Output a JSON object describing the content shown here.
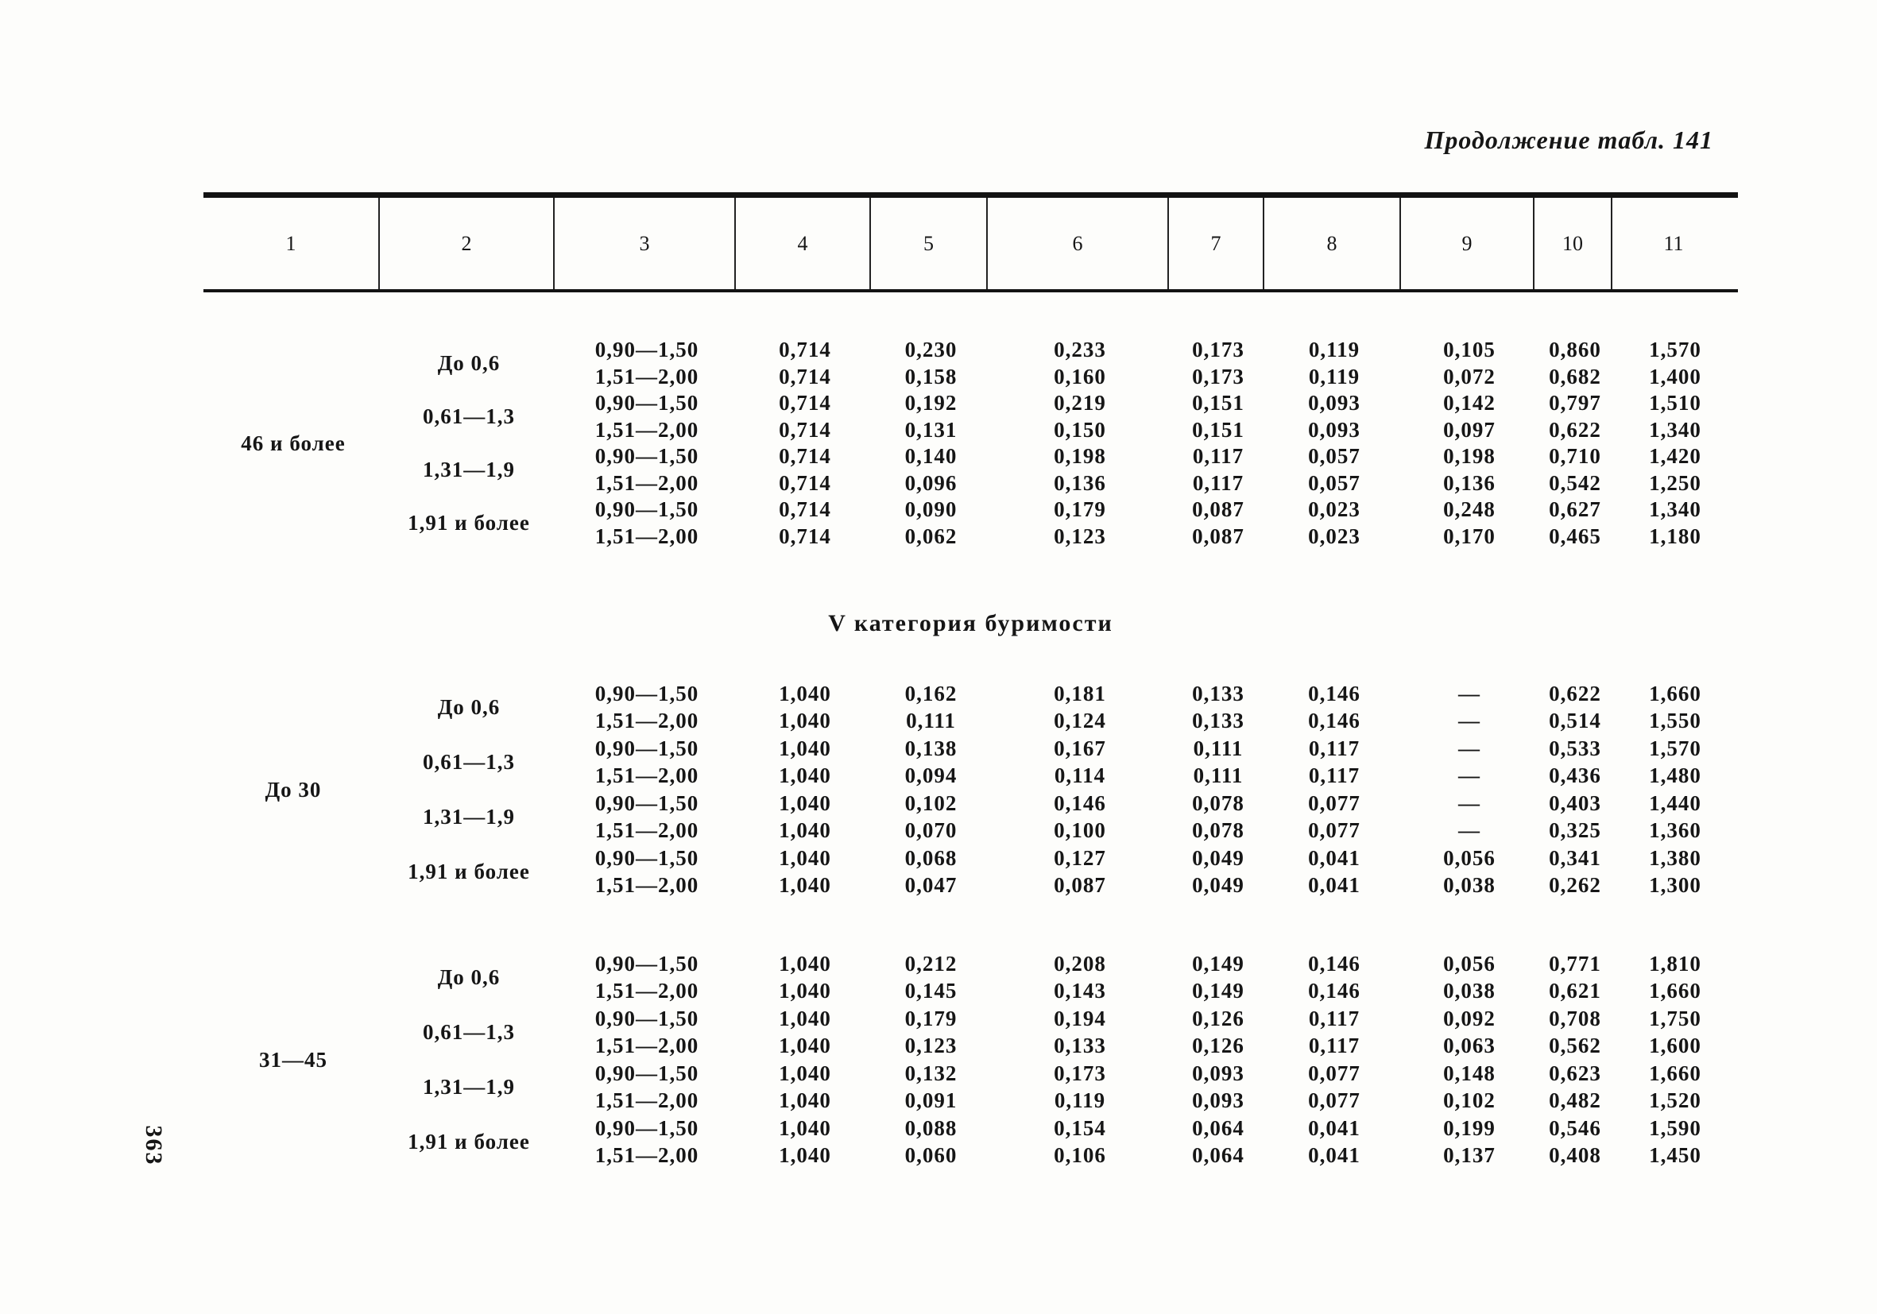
{
  "page": {
    "title": "Продолжение табл. 141",
    "section_header": "V категория буримости",
    "page_number": "363"
  },
  "table": {
    "column_numbers": [
      "1",
      "2",
      "3",
      "4",
      "5",
      "6",
      "7",
      "8",
      "9",
      "10",
      "11"
    ],
    "blocks": [
      {
        "col1": "46 и более",
        "groups": [
          {
            "label": "До 0,6",
            "rows": [
              {
                "range": "0,90—1,50",
                "v": [
                  "0,714",
                  "0,230",
                  "0,233",
                  "0,173",
                  "0,119",
                  "0,105",
                  "0,860",
                  "1,570"
                ]
              },
              {
                "range": "1,51—2,00",
                "v": [
                  "0,714",
                  "0,158",
                  "0,160",
                  "0,173",
                  "0,119",
                  "0,072",
                  "0,682",
                  "1,400"
                ]
              }
            ]
          },
          {
            "label": "0,61—1,3",
            "rows": [
              {
                "range": "0,90—1,50",
                "v": [
                  "0,714",
                  "0,192",
                  "0,219",
                  "0,151",
                  "0,093",
                  "0,142",
                  "0,797",
                  "1,510"
                ]
              },
              {
                "range": "1,51—2,00",
                "v": [
                  "0,714",
                  "0,131",
                  "0,150",
                  "0,151",
                  "0,093",
                  "0,097",
                  "0,622",
                  "1,340"
                ]
              }
            ]
          },
          {
            "label": "1,31—1,9",
            "rows": [
              {
                "range": "0,90—1,50",
                "v": [
                  "0,714",
                  "0,140",
                  "0,198",
                  "0,117",
                  "0,057",
                  "0,198",
                  "0,710",
                  "1,420"
                ]
              },
              {
                "range": "1,51—2,00",
                "v": [
                  "0,714",
                  "0,096",
                  "0,136",
                  "0,117",
                  "0,057",
                  "0,136",
                  "0,542",
                  "1,250"
                ]
              }
            ]
          },
          {
            "label": "1,91 и более",
            "rows": [
              {
                "range": "0,90—1,50",
                "v": [
                  "0,714",
                  "0,090",
                  "0,179",
                  "0,087",
                  "0,023",
                  "0,248",
                  "0,627",
                  "1,340"
                ]
              },
              {
                "range": "1,51—2,00",
                "v": [
                  "0,714",
                  "0,062",
                  "0,123",
                  "0,087",
                  "0,023",
                  "0,170",
                  "0,465",
                  "1,180"
                ]
              }
            ]
          }
        ]
      },
      {
        "col1": "До 30",
        "groups": [
          {
            "label": "До 0,6",
            "rows": [
              {
                "range": "0,90—1,50",
                "v": [
                  "1,040",
                  "0,162",
                  "0,181",
                  "0,133",
                  "0,146",
                  "—",
                  "0,622",
                  "1,660"
                ]
              },
              {
                "range": "1,51—2,00",
                "v": [
                  "1,040",
                  "0,111",
                  "0,124",
                  "0,133",
                  "0,146",
                  "—",
                  "0,514",
                  "1,550"
                ]
              }
            ]
          },
          {
            "label": "0,61—1,3",
            "rows": [
              {
                "range": "0,90—1,50",
                "v": [
                  "1,040",
                  "0,138",
                  "0,167",
                  "0,111",
                  "0,117",
                  "—",
                  "0,533",
                  "1,570"
                ]
              },
              {
                "range": "1,51—2,00",
                "v": [
                  "1,040",
                  "0,094",
                  "0,114",
                  "0,111",
                  "0,117",
                  "—",
                  "0,436",
                  "1,480"
                ]
              }
            ]
          },
          {
            "label": "1,31—1,9",
            "rows": [
              {
                "range": "0,90—1,50",
                "v": [
                  "1,040",
                  "0,102",
                  "0,146",
                  "0,078",
                  "0,077",
                  "—",
                  "0,403",
                  "1,440"
                ]
              },
              {
                "range": "1,51—2,00",
                "v": [
                  "1,040",
                  "0,070",
                  "0,100",
                  "0,078",
                  "0,077",
                  "—",
                  "0,325",
                  "1,360"
                ]
              }
            ]
          },
          {
            "label": "1,91 и более",
            "rows": [
              {
                "range": "0,90—1,50",
                "v": [
                  "1,040",
                  "0,068",
                  "0,127",
                  "0,049",
                  "0,041",
                  "0,056",
                  "0,341",
                  "1,380"
                ]
              },
              {
                "range": "1,51—2,00",
                "v": [
                  "1,040",
                  "0,047",
                  "0,087",
                  "0,049",
                  "0,041",
                  "0,038",
                  "0,262",
                  "1,300"
                ]
              }
            ]
          }
        ]
      },
      {
        "col1": "31—45",
        "groups": [
          {
            "label": "До 0,6",
            "rows": [
              {
                "range": "0,90—1,50",
                "v": [
                  "1,040",
                  "0,212",
                  "0,208",
                  "0,149",
                  "0,146",
                  "0,056",
                  "0,771",
                  "1,810"
                ]
              },
              {
                "range": "1,51—2,00",
                "v": [
                  "1,040",
                  "0,145",
                  "0,143",
                  "0,149",
                  "0,146",
                  "0,038",
                  "0,621",
                  "1,660"
                ]
              }
            ]
          },
          {
            "label": "0,61—1,3",
            "rows": [
              {
                "range": "0,90—1,50",
                "v": [
                  "1,040",
                  "0,179",
                  "0,194",
                  "0,126",
                  "0,117",
                  "0,092",
                  "0,708",
                  "1,750"
                ]
              },
              {
                "range": "1,51—2,00",
                "v": [
                  "1,040",
                  "0,123",
                  "0,133",
                  "0,126",
                  "0,117",
                  "0,063",
                  "0,562",
                  "1,600"
                ]
              }
            ]
          },
          {
            "label": "1,31—1,9",
            "rows": [
              {
                "range": "0,90—1,50",
                "v": [
                  "1,040",
                  "0,132",
                  "0,173",
                  "0,093",
                  "0,077",
                  "0,148",
                  "0,623",
                  "1,660"
                ]
              },
              {
                "range": "1,51—2,00",
                "v": [
                  "1,040",
                  "0,091",
                  "0,119",
                  "0,093",
                  "0,077",
                  "0,102",
                  "0,482",
                  "1,520"
                ]
              }
            ]
          },
          {
            "label": "1,91 и более",
            "rows": [
              {
                "range": "0,90—1,50",
                "v": [
                  "1,040",
                  "0,088",
                  "0,154",
                  "0,064",
                  "0,041",
                  "0,199",
                  "0,546",
                  "1,590"
                ]
              },
              {
                "range": "1,51—2,00",
                "v": [
                  "1,040",
                  "0,060",
                  "0,106",
                  "0,064",
                  "0,041",
                  "0,137",
                  "0,408",
                  "1,450"
                ]
              }
            ]
          }
        ]
      }
    ]
  }
}
